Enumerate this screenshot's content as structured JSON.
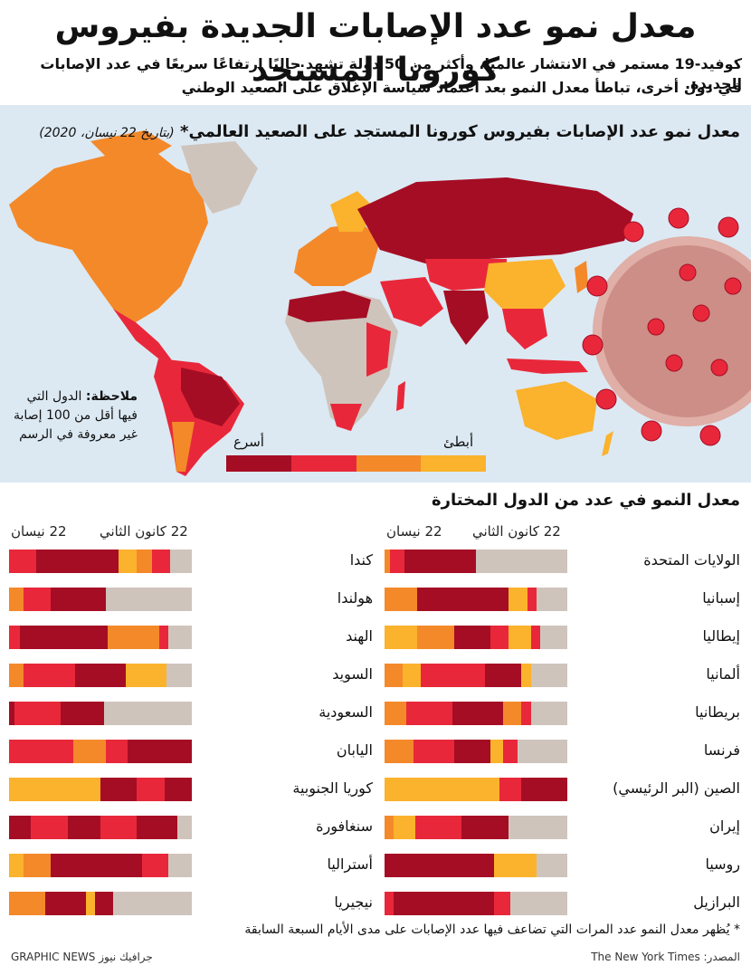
{
  "header": {
    "title": "معدل نمو عدد الإصابات الجديدة بفيروس كورونا المستجد",
    "subtitle_line1": "كوفيد-19 مستمر في الانتشار عالميًا، وأكثر من 50 دولة تشهد حاليًا ارتفاعًا سريعًا في عدد الإصابات الجديدة.",
    "subtitle_line2": "في دول أخرى، تباطأ معدل النمو بعد اعتماد سياسة الإغلاق على الصعيد الوطني"
  },
  "map": {
    "title": "معدل نمو عدد الإصابات بفيروس كورونا المستجد على الصعيد العالمي*",
    "date": "(بتاريخ 22 نيسان، 2020)",
    "note_label": "ملاحظة:",
    "note_text": "الدول التي فيها أقل من 100 إصابة غير معروفة في الرسم",
    "legend_fast": "أسرع",
    "legend_slow": "أبطئ"
  },
  "colors": {
    "darkest": "#a50d24",
    "red": "#e8283a",
    "orange": "#f4892a",
    "yellow": "#fbb22c",
    "unknown": "#cfc4bc",
    "ocean": "#dce9f3"
  },
  "small_multiples": {
    "title": "معدل النمو في عدد من الدول المختارة",
    "start_label": "22 كانون الثاني",
    "end_label": "22 نيسان"
  },
  "chart_data": {
    "type": "bar",
    "description_units": "fractions of 22 Jan - 22 Apr period per growth-rate class",
    "categories_order": [
      "darkest",
      "red",
      "orange",
      "yellow",
      "unknown"
    ],
    "countries_right": [
      {
        "name": "الولايات المتحدة",
        "segments": [
          [
            "orange",
            0.03
          ],
          [
            "red",
            0.08
          ],
          [
            "darkest",
            0.39
          ],
          [
            "unknown",
            0.5
          ]
        ]
      },
      {
        "name": "إسبانيا",
        "segments": [
          [
            "orange",
            0.18
          ],
          [
            "darkest",
            0.5
          ],
          [
            "yellow",
            0.1
          ],
          [
            "red",
            0.05
          ],
          [
            "unknown",
            0.17
          ]
        ]
      },
      {
        "name": "إيطاليا",
        "segments": [
          [
            "yellow",
            0.18
          ],
          [
            "orange",
            0.2
          ],
          [
            "darkest",
            0.2
          ],
          [
            "red",
            0.1
          ],
          [
            "yellow",
            0.12
          ],
          [
            "red",
            0.05
          ],
          [
            "unknown",
            0.15
          ]
        ]
      },
      {
        "name": "ألمانيا",
        "segments": [
          [
            "orange",
            0.1
          ],
          [
            "yellow",
            0.1
          ],
          [
            "red",
            0.35
          ],
          [
            "darkest",
            0.2
          ],
          [
            "yellow",
            0.05
          ],
          [
            "unknown",
            0.2
          ]
        ]
      },
      {
        "name": "بريطانيا",
        "segments": [
          [
            "orange",
            0.12
          ],
          [
            "red",
            0.25
          ],
          [
            "darkest",
            0.28
          ],
          [
            "orange",
            0.1
          ],
          [
            "red",
            0.05
          ],
          [
            "unknown",
            0.2
          ]
        ]
      },
      {
        "name": "فرنسا",
        "segments": [
          [
            "orange",
            0.16
          ],
          [
            "red",
            0.22
          ],
          [
            "darkest",
            0.2
          ],
          [
            "yellow",
            0.07
          ],
          [
            "red",
            0.08
          ],
          [
            "unknown",
            0.27
          ]
        ]
      },
      {
        "name": "الصين (البر الرئيسي)",
        "segments": [
          [
            "yellow",
            0.63
          ],
          [
            "red",
            0.12
          ],
          [
            "darkest",
            0.25
          ]
        ]
      },
      {
        "name": "إيران",
        "segments": [
          [
            "orange",
            0.05
          ],
          [
            "yellow",
            0.12
          ],
          [
            "red",
            0.25
          ],
          [
            "darkest",
            0.26
          ],
          [
            "unknown",
            0.32
          ]
        ]
      },
      {
        "name": "روسيا",
        "segments": [
          [
            "darkest",
            0.6
          ],
          [
            "yellow",
            0.23
          ],
          [
            "unknown",
            0.17
          ]
        ]
      },
      {
        "name": "البرازيل",
        "segments": [
          [
            "red",
            0.05
          ],
          [
            "darkest",
            0.55
          ],
          [
            "red",
            0.09
          ],
          [
            "unknown",
            0.31
          ]
        ]
      }
    ],
    "countries_left": [
      {
        "name": "كندا",
        "segments": [
          [
            "red",
            0.15
          ],
          [
            "darkest",
            0.45
          ],
          [
            "yellow",
            0.1
          ],
          [
            "orange",
            0.08
          ],
          [
            "red",
            0.1
          ],
          [
            "unknown",
            0.12
          ]
        ]
      },
      {
        "name": "هولندا",
        "segments": [
          [
            "orange",
            0.08
          ],
          [
            "red",
            0.15
          ],
          [
            "darkest",
            0.3
          ],
          [
            "unknown",
            0.47
          ]
        ]
      },
      {
        "name": "الهند",
        "segments": [
          [
            "red",
            0.06
          ],
          [
            "darkest",
            0.48
          ],
          [
            "orange",
            0.28
          ],
          [
            "red",
            0.05
          ],
          [
            "unknown",
            0.13
          ]
        ]
      },
      {
        "name": "السويد",
        "segments": [
          [
            "orange",
            0.08
          ],
          [
            "red",
            0.28
          ],
          [
            "darkest",
            0.28
          ],
          [
            "yellow",
            0.22
          ],
          [
            "unknown",
            0.14
          ]
        ]
      },
      {
        "name": "السعودية",
        "segments": [
          [
            "darkest",
            0.03
          ],
          [
            "red",
            0.25
          ],
          [
            "darkest",
            0.24
          ],
          [
            "unknown",
            0.48
          ]
        ]
      },
      {
        "name": "اليابان",
        "segments": [
          [
            "red",
            0.35
          ],
          [
            "orange",
            0.18
          ],
          [
            "red",
            0.12
          ],
          [
            "darkest",
            0.35
          ]
        ]
      },
      {
        "name": "كوريا الجنوبية",
        "segments": [
          [
            "yellow",
            0.5
          ],
          [
            "darkest",
            0.2
          ],
          [
            "red",
            0.15
          ],
          [
            "darkest",
            0.15
          ]
        ]
      },
      {
        "name": "سنغافورة",
        "segments": [
          [
            "darkest",
            0.12
          ],
          [
            "red",
            0.2
          ],
          [
            "darkest",
            0.18
          ],
          [
            "red",
            0.2
          ],
          [
            "darkest",
            0.22
          ],
          [
            "unknown",
            0.08
          ]
        ]
      },
      {
        "name": "أستراليا",
        "segments": [
          [
            "yellow",
            0.08
          ],
          [
            "orange",
            0.15
          ],
          [
            "darkest",
            0.5
          ],
          [
            "red",
            0.14
          ],
          [
            "unknown",
            0.13
          ]
        ]
      },
      {
        "name": "نيجيريا",
        "segments": [
          [
            "orange",
            0.2
          ],
          [
            "darkest",
            0.22
          ],
          [
            "yellow",
            0.05
          ],
          [
            "darkest",
            0.1
          ],
          [
            "unknown",
            0.43
          ]
        ]
      }
    ]
  },
  "footer": {
    "footnote": "* يُظهر معدل النمو عدد المرات التي تضاعف فيها عدد الإصابات على مدى الأيام السبعة السابقة",
    "source": "المصدر: The New York Times",
    "brand": "GRAPHIC NEWS جرافيك نيوز"
  }
}
